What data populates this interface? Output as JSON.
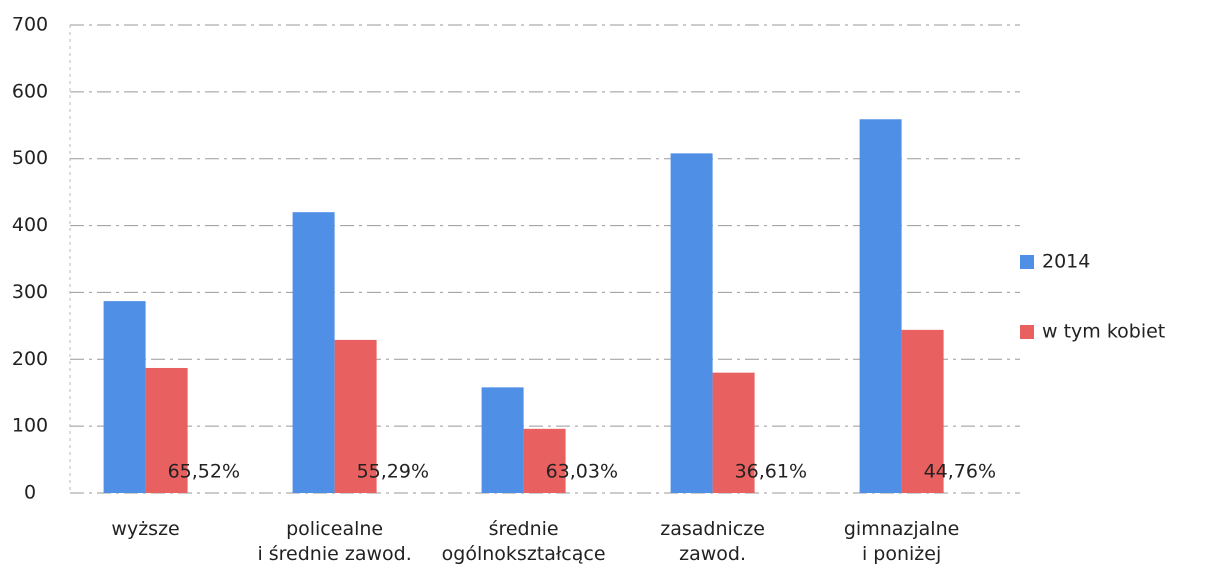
{
  "chart_data": {
    "type": "bar",
    "categories": [
      "wyższe",
      "policealne\ni średnie zawod.",
      "średnie\nogólnokształcące",
      "zasadnicze\nzawod.",
      "gimnazjalne\ni poniżej"
    ],
    "series": [
      {
        "name": "2014",
        "color": "#4f8fe6",
        "values": [
          287,
          420,
          158,
          508,
          559
        ]
      },
      {
        "name": "w tym kobiet",
        "color": "#e8605f",
        "values": [
          187,
          229,
          96,
          180,
          244
        ]
      }
    ],
    "annotations": [
      "65,52%",
      "55,29%",
      "63,03%",
      "36,61%",
      "44,76%"
    ],
    "ylim": [
      0,
      700
    ],
    "yticks": [
      0,
      100,
      200,
      300,
      400,
      500,
      600,
      700
    ],
    "grid": true,
    "legend": "right"
  }
}
